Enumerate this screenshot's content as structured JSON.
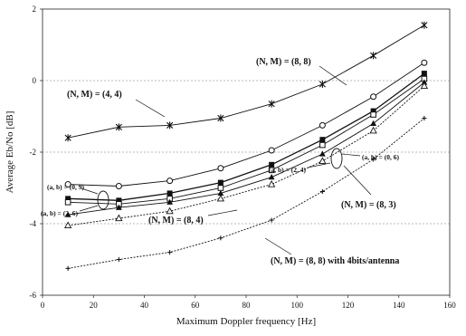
{
  "chart_data": {
    "type": "line",
    "title": "",
    "xlabel": "Maximum Doppler frequency [Hz]",
    "ylabel": "Average Eb/No [dB]",
    "xlim": [
      0,
      160
    ],
    "ylim": [
      -6,
      2
    ],
    "xticks": [
      "0",
      "20",
      "40",
      "60",
      "80",
      "100",
      "120",
      "140",
      "160"
    ],
    "yticks": [
      "-6",
      "-4",
      "-2",
      "0",
      "2"
    ],
    "grid": "horizontal dashed",
    "legend": "none (series annotated directly on the plot)",
    "x": [
      10,
      30,
      50,
      70,
      90,
      110,
      130,
      150
    ],
    "series": [
      {
        "marker": "star",
        "values": [
          -1.6,
          -1.3,
          -1.25,
          -1.05,
          -0.65,
          -0.1,
          0.7,
          1.55
        ]
      },
      {
        "marker": "open-circle",
        "values": [
          -2.9,
          -2.95,
          -2.8,
          -2.45,
          -1.95,
          -1.25,
          -0.45,
          0.5
        ]
      },
      {
        "marker": "filled-square",
        "values": [
          -3.3,
          -3.35,
          -3.15,
          -2.85,
          -2.35,
          -1.65,
          -0.85,
          0.2
        ]
      },
      {
        "marker": "open-square",
        "values": [
          -3.4,
          -3.45,
          -3.3,
          -3.0,
          -2.5,
          -1.8,
          -0.95,
          0.05
        ]
      },
      {
        "marker": "filled-triangle",
        "values": [
          -3.75,
          -3.55,
          -3.4,
          -3.15,
          -2.7,
          -2.05,
          -1.2,
          -0.05
        ]
      },
      {
        "marker": "open-triangle",
        "values": [
          -4.05,
          -3.85,
          -3.65,
          -3.3,
          -2.9,
          -2.25,
          -1.4,
          -0.15
        ]
      },
      {
        "marker": "plus",
        "values": [
          -5.25,
          -5.0,
          -4.8,
          -4.4,
          -3.9,
          -3.1,
          -2.2,
          -1.05
        ]
      }
    ],
    "annotations": {
      "nm44": "(N, M) = (4, 4)",
      "nm88": "(N, M) = (8, 8)",
      "nm83": "(N, M) = (8, 3)",
      "nm84": "(N, M) = (8, 4)",
      "nm88b": "(N, M) = (8, 8) with 4bits/antenna",
      "ab09": "(a, b) = (0, 9)",
      "ab26": "(a, b) = (2, 6)",
      "ab24": "(a, b) = (2, 4)",
      "ab06": "(a, b) = (0, 6)"
    }
  }
}
